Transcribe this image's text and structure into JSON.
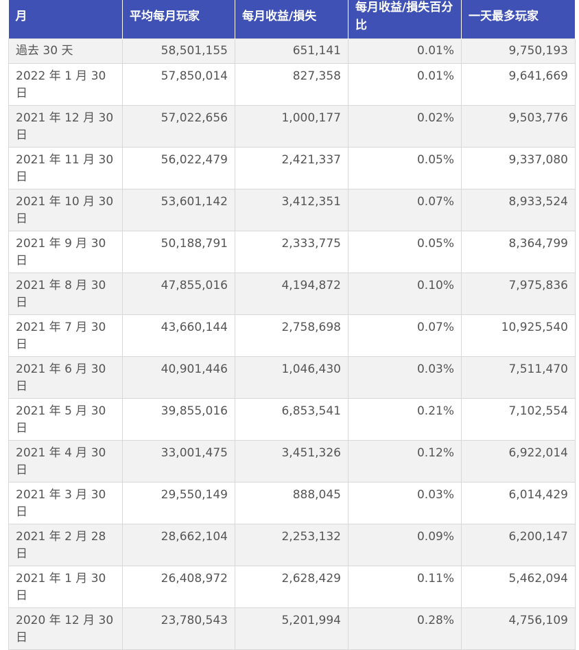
{
  "table": {
    "headers": [
      "月",
      "平均每月玩家",
      "每月收益/損失",
      "每月收益/損失百分比",
      "一天最多玩家"
    ],
    "rows": [
      {
        "month": "過去 30 天",
        "avg_players": "58,501,155",
        "gain": "651,141",
        "gain_pct": "0.01%",
        "peak": "9,750,193"
      },
      {
        "month": "2022 年 1 月 30 日",
        "avg_players": "57,850,014",
        "gain": "827,358",
        "gain_pct": "0.01%",
        "peak": "9,641,669"
      },
      {
        "month": "2021 年 12 月 30 日",
        "avg_players": "57,022,656",
        "gain": "1,000,177",
        "gain_pct": "0.02%",
        "peak": "9,503,776"
      },
      {
        "month": "2021 年 11 月 30 日",
        "avg_players": "56,022,479",
        "gain": "2,421,337",
        "gain_pct": "0.05%",
        "peak": "9,337,080"
      },
      {
        "month": "2021 年 10 月 30 日",
        "avg_players": "53,601,142",
        "gain": "3,412,351",
        "gain_pct": "0.07%",
        "peak": "8,933,524"
      },
      {
        "month": "2021 年 9 月 30 日",
        "avg_players": "50,188,791",
        "gain": "2,333,775",
        "gain_pct": "0.05%",
        "peak": "8,364,799"
      },
      {
        "month": "2021 年 8 月 30 日",
        "avg_players": "47,855,016",
        "gain": "4,194,872",
        "gain_pct": "0.10%",
        "peak": "7,975,836"
      },
      {
        "month": "2021 年 7 月 30 日",
        "avg_players": "43,660,144",
        "gain": "2,758,698",
        "gain_pct": "0.07%",
        "peak": "10,925,540"
      },
      {
        "month": "2021 年 6 月 30 日",
        "avg_players": "40,901,446",
        "gain": "1,046,430",
        "gain_pct": "0.03%",
        "peak": "7,511,470"
      },
      {
        "month": "2021 年 5 月 30 日",
        "avg_players": "39,855,016",
        "gain": "6,853,541",
        "gain_pct": "0.21%",
        "peak": "7,102,554"
      },
      {
        "month": "2021 年 4 月 30 日",
        "avg_players": "33,001,475",
        "gain": "3,451,326",
        "gain_pct": "0.12%",
        "peak": "6,922,014"
      },
      {
        "month": "2021 年 3 月 30 日",
        "avg_players": "29,550,149",
        "gain": "888,045",
        "gain_pct": "0.03%",
        "peak": "6,014,429"
      },
      {
        "month": "2021 年 2 月 28 日",
        "avg_players": "28,662,104",
        "gain": "2,253,132",
        "gain_pct": "0.09%",
        "peak": "6,200,147"
      },
      {
        "month": "2021 年 1 月 30 日",
        "avg_players": "26,408,972",
        "gain": "2,628,429",
        "gain_pct": "0.11%",
        "peak": "5,462,094"
      },
      {
        "month": "2020 年 12 月 30 日",
        "avg_players": "23,780,543",
        "gain": "5,201,994",
        "gain_pct": "0.28%",
        "peak": "4,756,109"
      }
    ]
  },
  "colors": {
    "header_bg": "#3f51b5",
    "header_text": "#ffffff",
    "row_alt_bg": "#f2f2f2",
    "cell_text": "#555555",
    "border": "#d8d8d8"
  }
}
